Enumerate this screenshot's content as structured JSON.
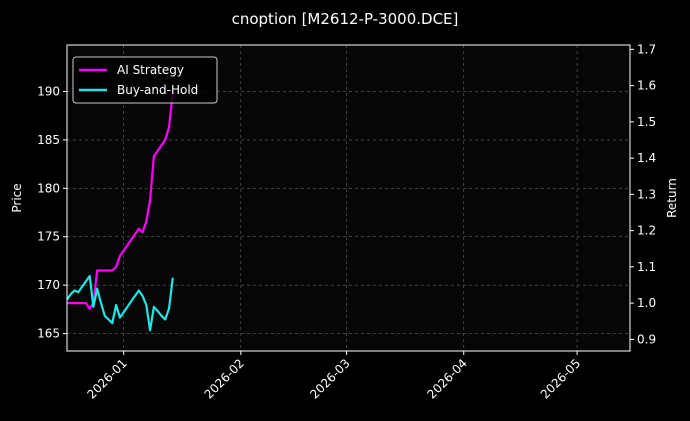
{
  "chart_data": {
    "type": "line",
    "title": "cnoption [M2612-P-3000.DCE]",
    "xlabel": "",
    "ylabel": "Price",
    "y2label": "Return",
    "x_axis": "date",
    "xlim": [
      "2025-12-17",
      "2026-05-15"
    ],
    "ylim": [
      163.2,
      194.8
    ],
    "y2lim": [
      0.868,
      1.712
    ],
    "x_ticks": [
      "2026-01-01",
      "2026-02-01",
      "2026-03-01",
      "2026-04-01",
      "2026-05-01"
    ],
    "x_tick_labels": [
      "2026-01",
      "2026-02",
      "2026-03",
      "2026-04",
      "2026-05"
    ],
    "y_ticks": [
      165,
      170,
      175,
      180,
      185,
      190
    ],
    "y2_ticks": [
      0.9,
      1.0,
      1.1,
      1.2,
      1.3,
      1.4,
      1.5,
      1.6,
      1.7
    ],
    "grid": true,
    "legend_position": "top-left",
    "background": "#000000",
    "series": [
      {
        "name": "AI Strategy",
        "axis": "right",
        "color": "#ff00ff",
        "x": [
          "2025-12-17",
          "2025-12-18",
          "2025-12-19",
          "2025-12-20",
          "2025-12-21",
          "2025-12-22",
          "2025-12-23",
          "2025-12-24",
          "2025-12-25",
          "2025-12-26",
          "2025-12-27",
          "2025-12-28",
          "2025-12-29",
          "2025-12-30",
          "2025-12-31",
          "2026-01-01",
          "2026-01-02",
          "2026-01-03",
          "2026-01-04",
          "2026-01-05",
          "2026-01-06",
          "2026-01-07",
          "2026-01-08",
          "2026-01-09",
          "2026-01-10",
          "2026-01-11",
          "2026-01-12",
          "2026-01-13",
          "2026-01-14"
        ],
        "values": [
          1.0,
          1.0,
          1.0,
          1.0,
          1.0,
          1.0,
          0.985,
          1.0,
          1.09,
          1.09,
          1.09,
          1.09,
          1.09,
          1.1,
          1.13,
          1.145,
          1.16,
          1.175,
          1.19,
          1.205,
          1.195,
          1.225,
          1.285,
          1.405,
          1.42,
          1.435,
          1.45,
          1.485,
          1.58
        ]
      },
      {
        "name": "Buy-and-Hold",
        "axis": "right",
        "color": "#22e5e5",
        "x": [
          "2025-12-17",
          "2025-12-18",
          "2025-12-19",
          "2025-12-20",
          "2025-12-21",
          "2025-12-22",
          "2025-12-23",
          "2025-12-24",
          "2025-12-25",
          "2025-12-26",
          "2025-12-27",
          "2025-12-28",
          "2025-12-29",
          "2025-12-30",
          "2025-12-31",
          "2026-01-01",
          "2026-01-02",
          "2026-01-03",
          "2026-01-04",
          "2026-01-05",
          "2026-01-06",
          "2026-01-07",
          "2026-01-08",
          "2026-01-09",
          "2026-01-10",
          "2026-01-11",
          "2026-01-12",
          "2026-01-13",
          "2026-01-14"
        ],
        "values": [
          1.01,
          1.025,
          1.035,
          1.03,
          1.045,
          1.06,
          1.075,
          0.99,
          1.04,
          1.0,
          0.965,
          0.955,
          0.945,
          0.995,
          0.96,
          0.975,
          0.99,
          1.005,
          1.02,
          1.035,
          1.02,
          0.995,
          0.925,
          0.99,
          0.978,
          0.965,
          0.955,
          0.985,
          1.07
        ]
      }
    ]
  }
}
